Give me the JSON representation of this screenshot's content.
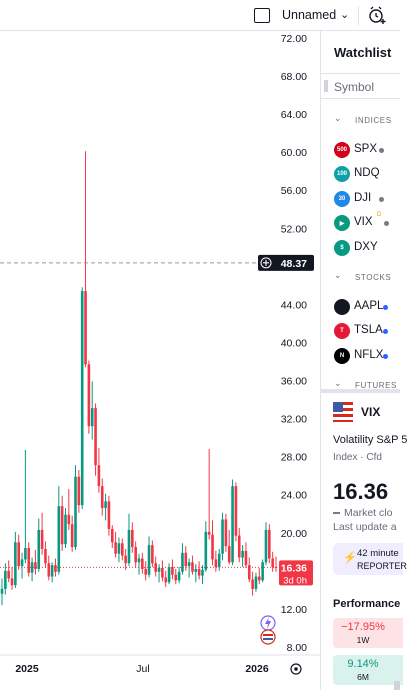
{
  "topbar": {
    "layout_name": "Unnamed",
    "caret": "⌄",
    "alert_icon": "alarm-clock-plus-icon"
  },
  "chart": {
    "price_axis": [
      "72.00",
      "68.00",
      "64.00",
      "60.00",
      "56.00",
      "52.00",
      "48.00",
      "44.00",
      "40.00",
      "36.00",
      "32.00",
      "28.00",
      "24.00",
      "20.00",
      "16.00",
      "12.00",
      "8.00"
    ],
    "time_axis": [
      "2025",
      "Jul",
      "2026"
    ],
    "crosshair_price": "48.37",
    "last_price": "16.36",
    "countdown": "3d 0h",
    "colors": {
      "up": "#089981",
      "down": "#f23645",
      "axis_text": "#131722"
    }
  },
  "chart_data": {
    "type": "candlestick",
    "yaxis_range": [
      6,
      72
    ],
    "candles": [
      [
        13.6,
        15.2,
        12.4,
        14.1
      ],
      [
        14.1,
        16.8,
        13.5,
        16.0
      ],
      [
        16.0,
        17.1,
        14.8,
        15.2
      ],
      [
        15.2,
        16.4,
        14.0,
        14.5
      ],
      [
        14.5,
        20.1,
        14.2,
        19.0
      ],
      [
        19.0,
        19.8,
        16.1,
        16.5
      ],
      [
        16.5,
        17.9,
        15.2,
        17.2
      ],
      [
        17.2,
        28.7,
        16.8,
        18.4
      ],
      [
        18.4,
        19.0,
        15.4,
        15.8
      ],
      [
        15.8,
        17.4,
        14.9,
        16.9
      ],
      [
        16.9,
        18.2,
        15.6,
        16.2
      ],
      [
        16.2,
        21.5,
        15.9,
        20.3
      ],
      [
        20.3,
        22.1,
        17.7,
        18.3
      ],
      [
        18.3,
        19.1,
        16.3,
        16.8
      ],
      [
        16.8,
        17.6,
        15.0,
        15.4
      ],
      [
        15.4,
        16.9,
        14.8,
        16.6
      ],
      [
        16.6,
        17.3,
        15.4,
        15.9
      ],
      [
        15.9,
        24.9,
        15.6,
        22.8
      ],
      [
        22.8,
        23.9,
        18.1,
        18.8
      ],
      [
        18.8,
        22.6,
        18.4,
        21.9
      ],
      [
        21.9,
        24.6,
        20.3,
        20.9
      ],
      [
        20.9,
        21.8,
        18.0,
        18.5
      ],
      [
        18.5,
        27.1,
        18.2,
        25.9
      ],
      [
        25.9,
        26.6,
        22.1,
        22.9
      ],
      [
        22.9,
        45.8,
        22.5,
        45.4
      ],
      [
        45.4,
        60.1,
        37.4,
        37.7
      ],
      [
        37.7,
        38.1,
        30.4,
        31.2
      ],
      [
        31.2,
        35.9,
        29.8,
        33.1
      ],
      [
        33.1,
        33.6,
        26.0,
        27.1
      ],
      [
        27.1,
        28.9,
        24.2,
        24.9
      ],
      [
        24.9,
        25.7,
        21.8,
        22.6
      ],
      [
        22.6,
        24.1,
        21.3,
        23.3
      ],
      [
        23.3,
        23.9,
        19.7,
        20.4
      ],
      [
        20.4,
        20.8,
        18.4,
        19.0
      ],
      [
        19.0,
        20.1,
        17.4,
        17.8
      ],
      [
        17.8,
        19.5,
        16.9,
        18.9
      ],
      [
        18.9,
        19.4,
        17.1,
        17.6
      ],
      [
        17.6,
        18.3,
        16.1,
        16.8
      ],
      [
        16.8,
        22.0,
        16.5,
        20.3
      ],
      [
        20.3,
        21.1,
        17.9,
        18.5
      ],
      [
        18.5,
        19.1,
        16.3,
        16.9
      ],
      [
        16.9,
        17.8,
        15.6,
        17.3
      ],
      [
        17.3,
        17.9,
        15.7,
        16.2
      ],
      [
        16.2,
        17.0,
        15.0,
        15.6
      ],
      [
        15.6,
        19.6,
        15.3,
        18.7
      ],
      [
        18.7,
        19.2,
        16.4,
        16.8
      ],
      [
        16.8,
        17.5,
        15.4,
        15.9
      ],
      [
        15.9,
        16.7,
        14.8,
        16.3
      ],
      [
        16.3,
        17.1,
        14.9,
        15.3
      ],
      [
        15.3,
        16.0,
        14.3,
        14.8
      ],
      [
        14.8,
        16.8,
        14.6,
        16.4
      ],
      [
        16.4,
        17.2,
        15.1,
        15.6
      ],
      [
        15.6,
        16.2,
        14.6,
        15.0
      ],
      [
        15.0,
        16.4,
        14.7,
        15.9
      ],
      [
        15.9,
        18.9,
        15.6,
        17.9
      ],
      [
        17.9,
        18.6,
        16.0,
        16.5
      ],
      [
        16.5,
        17.3,
        15.3,
        16.9
      ],
      [
        16.9,
        17.6,
        15.6,
        15.9
      ],
      [
        15.9,
        16.7,
        14.8,
        16.2
      ],
      [
        16.2,
        17.0,
        15.1,
        15.5
      ],
      [
        15.5,
        16.6,
        14.6,
        16.1
      ],
      [
        16.1,
        21.2,
        15.9,
        20.1
      ],
      [
        20.1,
        28.8,
        19.3,
        19.8
      ],
      [
        19.8,
        21.3,
        16.6,
        17.2
      ],
      [
        17.2,
        18.1,
        15.9,
        16.4
      ],
      [
        16.4,
        18.3,
        16.0,
        17.8
      ],
      [
        17.8,
        22.1,
        17.1,
        21.4
      ],
      [
        21.4,
        22.0,
        18.0,
        18.6
      ],
      [
        18.6,
        20.3,
        16.7,
        16.9
      ],
      [
        16.9,
        25.6,
        16.6,
        24.9
      ],
      [
        24.9,
        25.3,
        19.1,
        19.7
      ],
      [
        19.7,
        20.5,
        16.9,
        17.4
      ],
      [
        17.4,
        18.7,
        16.4,
        18.1
      ],
      [
        18.1,
        19.0,
        16.3,
        16.6
      ],
      [
        16.6,
        17.4,
        14.8,
        15.1
      ],
      [
        15.1,
        15.9,
        13.4,
        14.1
      ],
      [
        14.1,
        15.8,
        13.8,
        15.4
      ],
      [
        15.4,
        16.3,
        14.6,
        15.0
      ],
      [
        15.0,
        17.2,
        14.8,
        16.9
      ],
      [
        16.9,
        21.1,
        16.6,
        20.3
      ],
      [
        20.3,
        20.9,
        16.8,
        17.3
      ],
      [
        17.3,
        18.0,
        15.9,
        16.4
      ],
      [
        16.4,
        17.5,
        15.9,
        16.36
      ]
    ]
  },
  "watchlist": {
    "title": "Watchlist",
    "column_symbol": "Symbol",
    "sections": [
      {
        "name": "INDICES",
        "items": [
          {
            "icon_text": "500",
            "symbol": "SPX",
            "color": "#d0021b",
            "dot": "#787b86"
          },
          {
            "icon_text": "100",
            "symbol": "NDQ",
            "color": "#0e9fa7",
            "dot": ""
          },
          {
            "icon_text": "30",
            "symbol": "DJI",
            "color": "#1e88e5",
            "dot": "#787b86"
          },
          {
            "icon_text": "▶",
            "symbol": "VIX",
            "color": "#089981",
            "dot": "#787b86",
            "sup": "D"
          },
          {
            "icon_text": "$",
            "symbol": "DXY",
            "color": "#089981",
            "dot": ""
          }
        ]
      },
      {
        "name": "STOCKS",
        "items": [
          {
            "icon_text": "",
            "symbol": "AAPL",
            "color": "#131722",
            "dot": "#2962ff"
          },
          {
            "icon_text": "T",
            "symbol": "TSLA",
            "color": "#e31937",
            "dot": "#2962ff"
          },
          {
            "icon_text": "N",
            "symbol": "NFLX",
            "color": "#000000",
            "dot": "#2962ff"
          }
        ]
      },
      {
        "name": "FUTURES",
        "items": []
      }
    ]
  },
  "details": {
    "symbol": "VIX",
    "name": "Volatility S&P 5",
    "meta": "Index · Cfd",
    "price": "16.36",
    "status": "Market clo",
    "update": "Last update a",
    "earnings_line1": "42 minute",
    "earnings_line2": "REPORTER",
    "performance_title": "Performance",
    "performance": [
      {
        "value": "−17.95%",
        "period": "1W",
        "bg": "#fde3e5",
        "fg": "#f23645"
      },
      {
        "value": "9.14%",
        "period": "6M",
        "bg": "#daf2ec",
        "fg": "#089981"
      }
    ]
  }
}
